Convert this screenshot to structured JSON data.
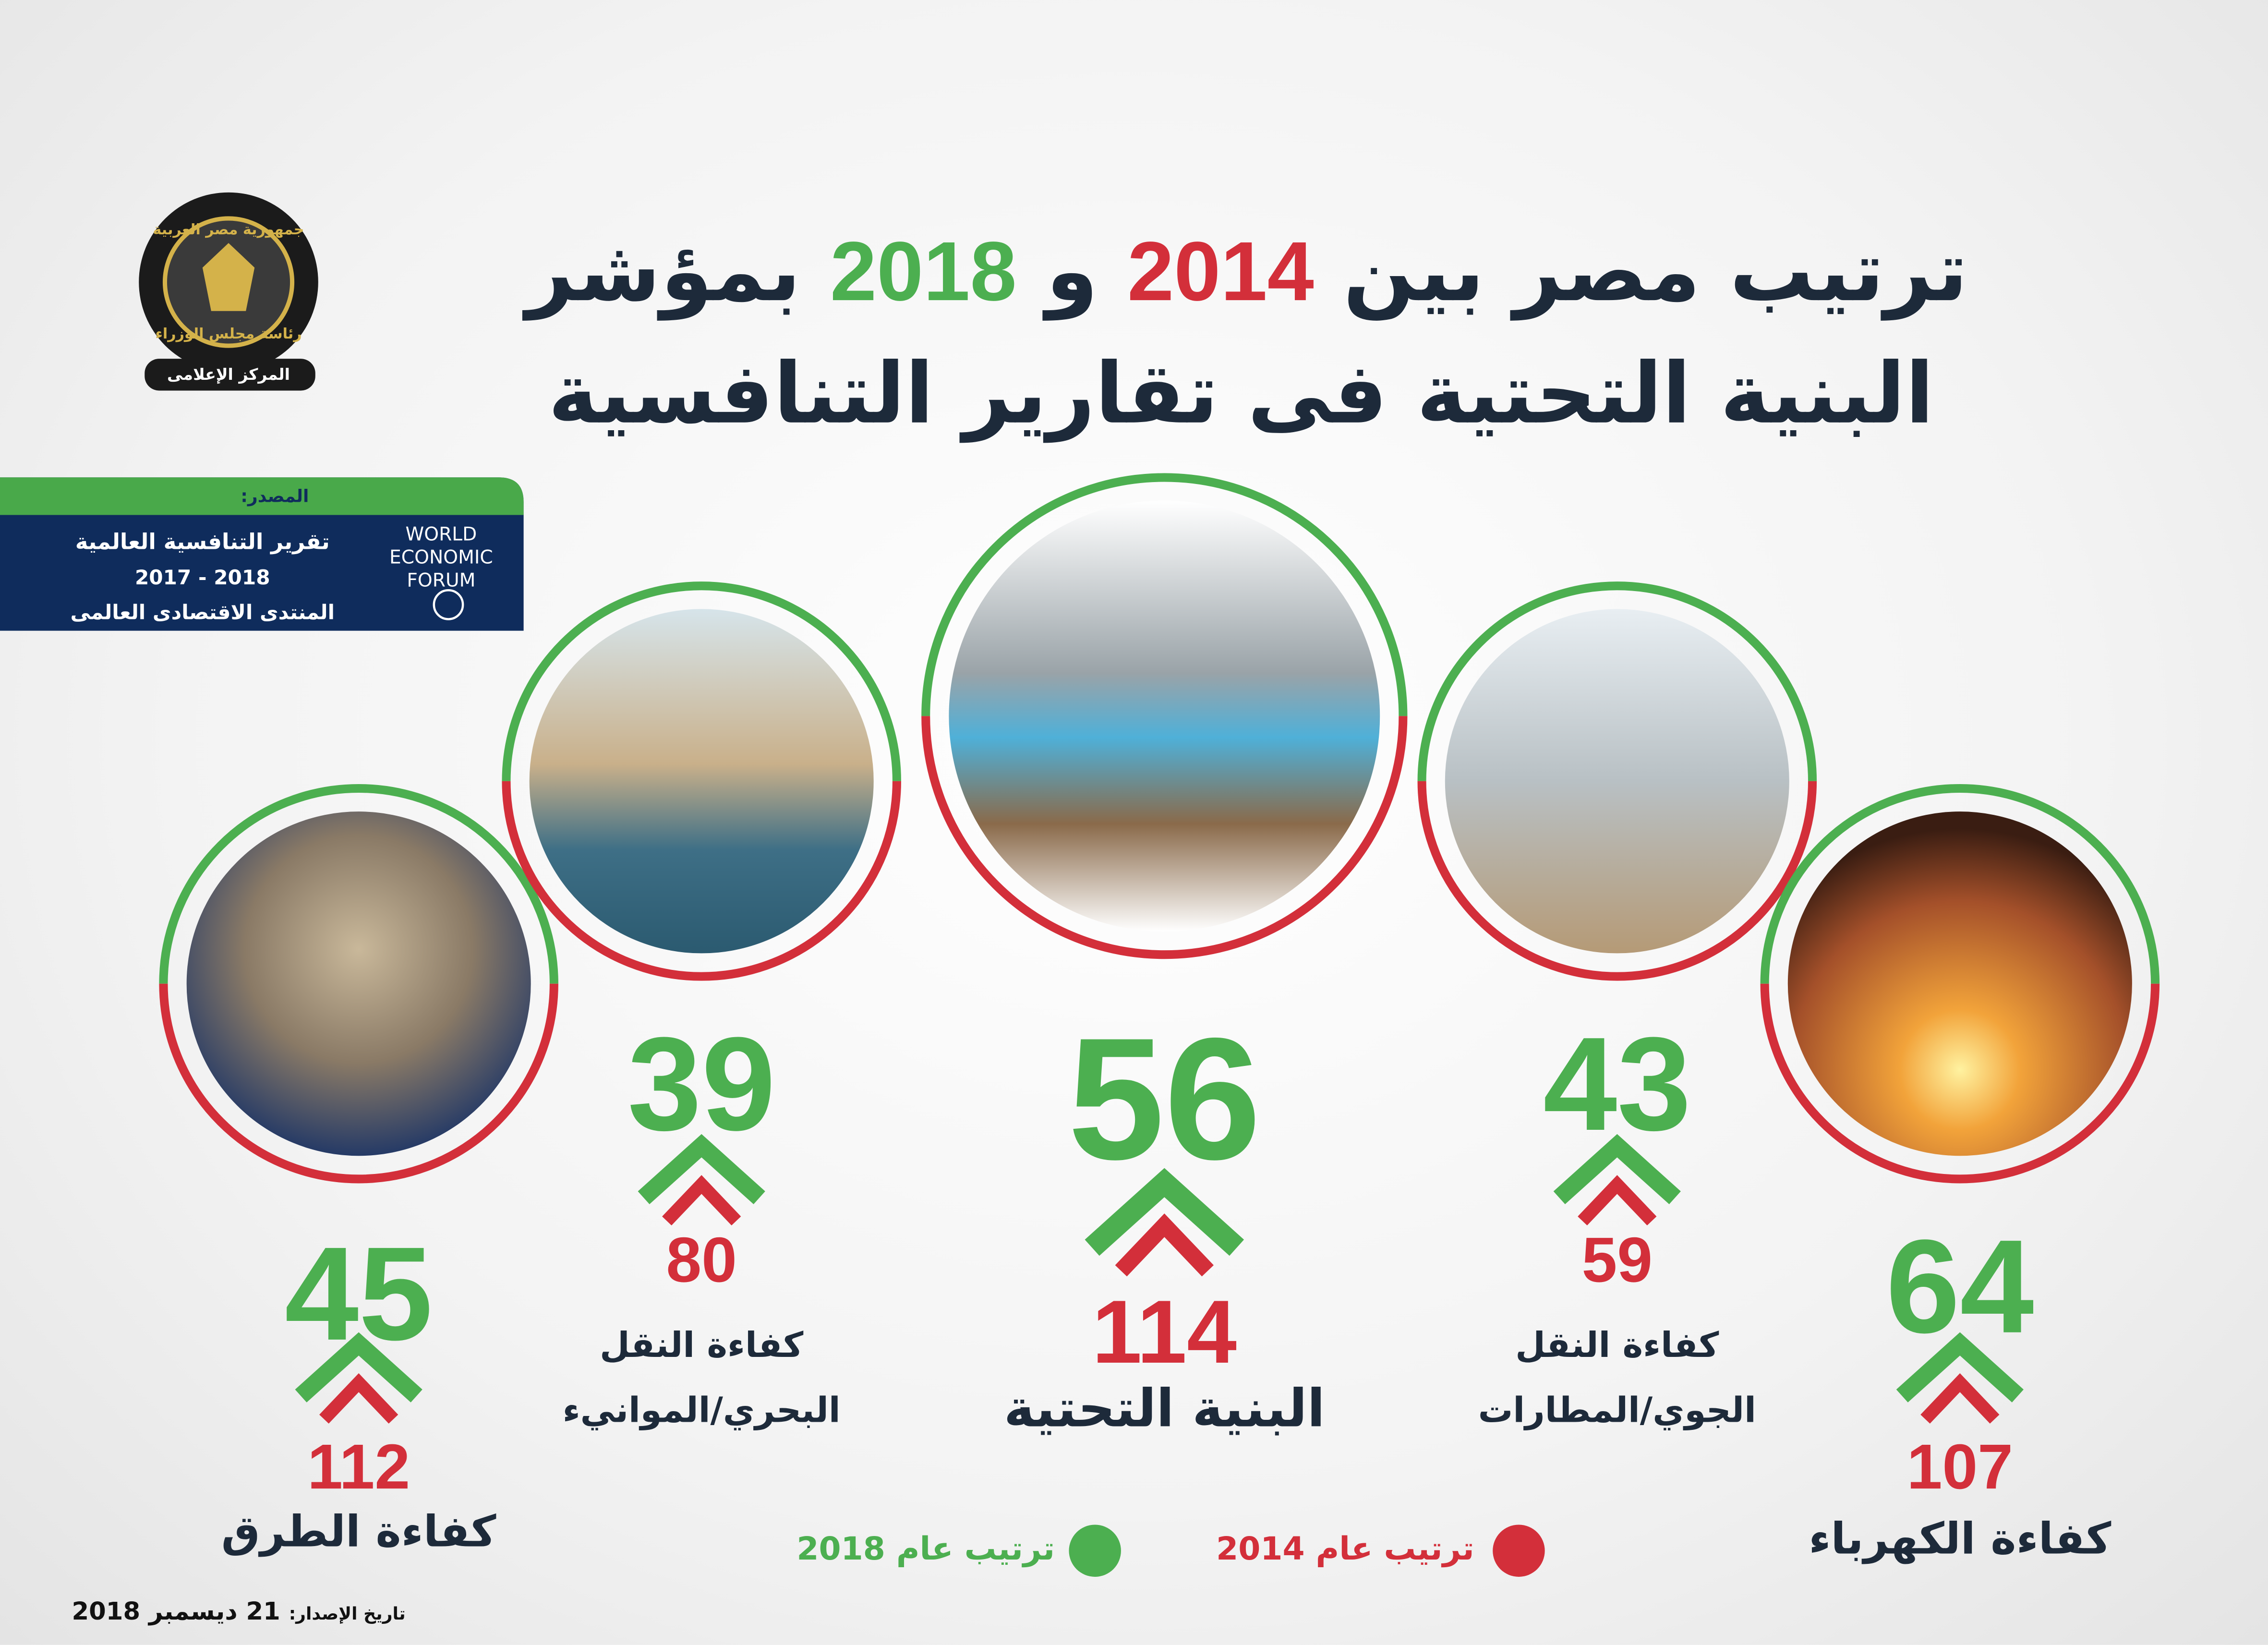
{
  "logo": {
    "top_text": "جمهورية مصر العربية",
    "middle_text": "رئاسة مجلس الوزراء",
    "bottom_text": "المركز الإعلامى"
  },
  "title": {
    "line1_start": "ترتيب مصر بين",
    "year_2014": "2014",
    "conjunction": "و",
    "year_2018": "2018",
    "line1_end": "بمؤشر",
    "line2": "البنية التحتية فى تقارير التنافسية"
  },
  "source": {
    "label": "المصدر:",
    "report": "تقرير التنافسية العالمية",
    "years": "2017 - 2018",
    "publisher": "المنتدى الاقتصادى العالمى",
    "logo_lines": [
      "WORLD",
      "ECONOMIC",
      "FORUM"
    ]
  },
  "indicators": [
    {
      "name_lines": [
        "كفاءة الطرق"
      ],
      "rank_2018": 45,
      "rank_2014": 112
    },
    {
      "name_lines": [
        "كفاءة النقل",
        "البحري/الموانيء"
      ],
      "rank_2018": 39,
      "rank_2014": 80
    },
    {
      "name_lines": [
        "البنية التحتية"
      ],
      "rank_2018": 56,
      "rank_2014": 114
    },
    {
      "name_lines": [
        "كفاءة النقل",
        "الجوي/المطارات"
      ],
      "rank_2018": 43,
      "rank_2014": 59
    },
    {
      "name_lines": [
        "كفاءة الكهرباء"
      ],
      "rank_2018": 64,
      "rank_2014": 107
    }
  ],
  "legend": {
    "label_2014": "ترتيب عام 2014",
    "label_2018": "ترتيب عام 2018"
  },
  "footer": {
    "label": "تاريخ الإصدار:",
    "date": "21 ديسمبر 2018"
  }
}
